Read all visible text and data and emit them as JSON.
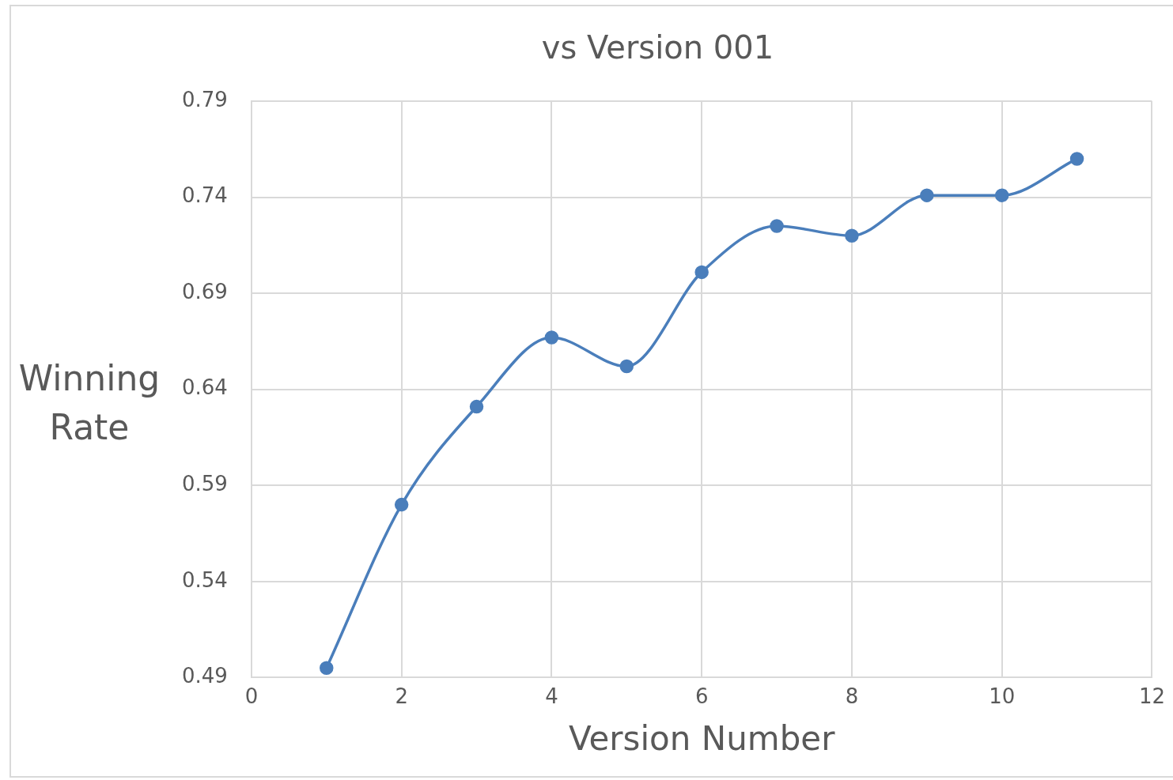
{
  "chart_data": {
    "type": "line",
    "title": "vs Version 001",
    "xlabel": "Version Number",
    "ylabel": "Winning Rate",
    "x": [
      1,
      2,
      3,
      4,
      5,
      6,
      7,
      8,
      9,
      10,
      11
    ],
    "series": [
      {
        "color": "#4a7ebb",
        "values": [
          0.495,
          0.58,
          0.631,
          0.667,
          0.652,
          0.701,
          0.725,
          0.72,
          0.741,
          0.741,
          0.76
        ]
      }
    ],
    "xlim": [
      0,
      12
    ],
    "xticks": [
      0,
      2,
      4,
      6,
      8,
      10,
      12
    ],
    "ylim": [
      0.49,
      0.79
    ],
    "yticks": [
      0.49,
      0.54,
      0.59,
      0.64,
      0.69,
      0.74,
      0.79
    ],
    "grid": true,
    "legend": false,
    "marker": "circle",
    "line_style": "solid"
  }
}
